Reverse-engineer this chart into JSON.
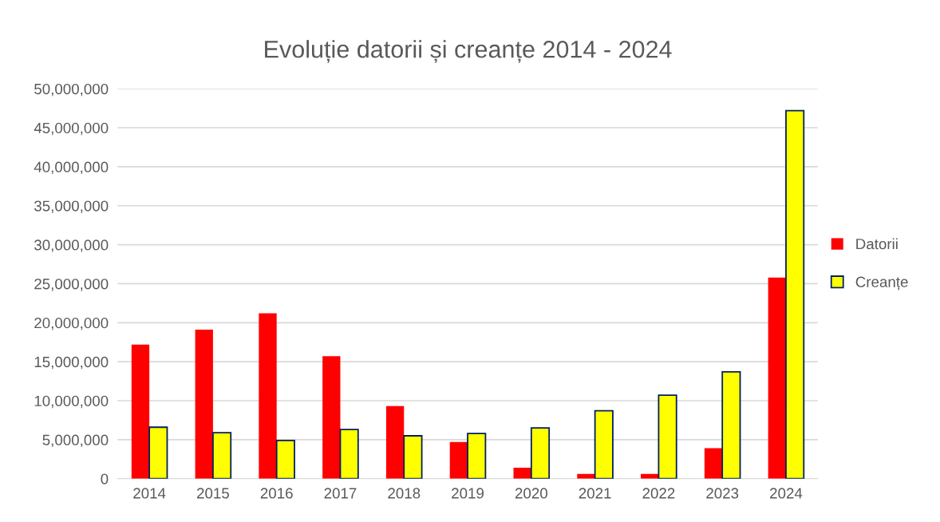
{
  "chart_data": {
    "type": "bar",
    "title": "Evoluție datorii și creanțe 2014 - 2024",
    "categories": [
      "2014",
      "2015",
      "2016",
      "2017",
      "2018",
      "2019",
      "2020",
      "2021",
      "2022",
      "2023",
      "2024"
    ],
    "series": [
      {
        "name": "Datorii",
        "color": "#ff0000",
        "values": [
          17200000,
          19100000,
          21200000,
          15700000,
          9300000,
          4700000,
          1400000,
          600000,
          600000,
          3900000,
          25800000
        ]
      },
      {
        "name": "Creanțe",
        "color": "#ffff00",
        "values": [
          6600000,
          5900000,
          4900000,
          6300000,
          5500000,
          5800000,
          6500000,
          8700000,
          10700000,
          13700000,
          47200000
        ]
      }
    ],
    "ylim": [
      0,
      50000000
    ],
    "yticks": [
      {
        "value": 0,
        "label": "0"
      },
      {
        "value": 5000000,
        "label": "5,000,000"
      },
      {
        "value": 10000000,
        "label": "10,000,000"
      },
      {
        "value": 15000000,
        "label": "15,000,000"
      },
      {
        "value": 20000000,
        "label": "20,000,000"
      },
      {
        "value": 25000000,
        "label": "25,000,000"
      },
      {
        "value": 30000000,
        "label": "30,000,000"
      },
      {
        "value": 35000000,
        "label": "35,000,000"
      },
      {
        "value": 40000000,
        "label": "40,000,000"
      },
      {
        "value": 45000000,
        "label": "45,000,000"
      },
      {
        "value": 50000000,
        "label": "50,000,000"
      }
    ],
    "grid": "y",
    "legend": "right"
  }
}
